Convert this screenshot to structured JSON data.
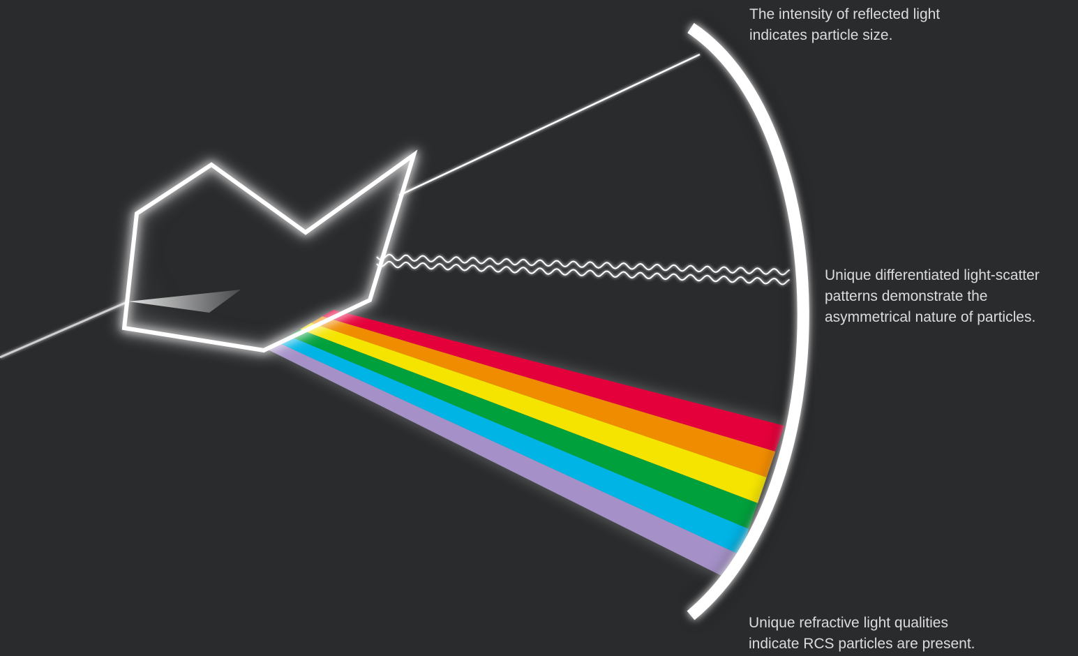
{
  "captions": {
    "reflected": {
      "line1": "The intensity of reflected light",
      "line2": "indicates particle size."
    },
    "scatter": {
      "line1": "Unique differentiated light-scatter",
      "line2": "patterns demonstrate the",
      "line3": "asymmetrical nature of particles."
    },
    "refractive": {
      "line1": "Unique refractive light qualities",
      "line2": "indicate RCS particles are present."
    }
  },
  "colors": {
    "background": "#2a2b2d",
    "text": "#dcdcdc",
    "outline": "#ffffff",
    "spectrum": [
      "#e4003a",
      "#f08c00",
      "#f5e400",
      "#00a03c",
      "#00b4e6",
      "#a591c8"
    ]
  },
  "elements": {
    "particle": "particle-outline",
    "detector": "curved-detector-arc",
    "incident_beam": "incident-light-beam",
    "reflected_beam": "reflected-light-beam",
    "scatter": "wavy-scatter-lines",
    "spectrum": "refracted-spectrum-bands"
  }
}
